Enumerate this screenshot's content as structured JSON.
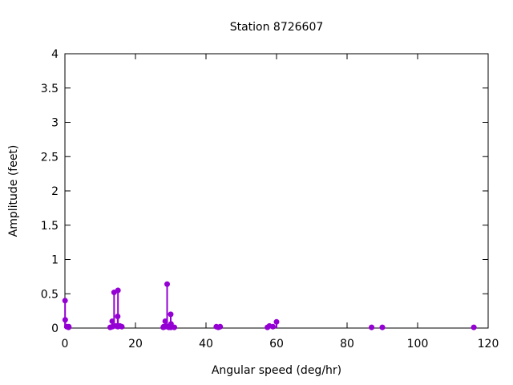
{
  "chart_data": {
    "type": "scatter",
    "style": "stem+point",
    "title": "Station 8726607",
    "xlabel": "Angular speed (deg/hr)",
    "ylabel": "Amplitude (feet)",
    "xlim": [
      0,
      120
    ],
    "ylim": [
      0,
      4
    ],
    "xticks": {
      "values": [
        0,
        20,
        40,
        60,
        80,
        100,
        120
      ],
      "labels": [
        "0",
        "20",
        "40",
        "60",
        "80",
        "100",
        "120"
      ]
    },
    "yticks": {
      "values": [
        0,
        0.5,
        1,
        1.5,
        2,
        2.5,
        3,
        3.5,
        4
      ],
      "labels": [
        "0",
        "0.5",
        "1",
        "1.5",
        "2",
        "2.5",
        "3",
        "3.5",
        "4"
      ]
    },
    "grid": false,
    "legend_position": "none",
    "tick_style": "inward-mirrored",
    "point_color": "#9400d3",
    "axis_color": "#000000",
    "text_color": "#000000",
    "background_color": "#ffffff",
    "series": [
      {
        "name": "harmonic-amplitudes",
        "color": "#9400d3",
        "points": [
          [
            0.04,
            0.4
          ],
          [
            0.08,
            0.12
          ],
          [
            0.54,
            0.02
          ],
          [
            1.02,
            0.01
          ],
          [
            1.1,
            0.02
          ],
          [
            12.85,
            0.01
          ],
          [
            13.4,
            0.1
          ],
          [
            13.47,
            0.02
          ],
          [
            13.94,
            0.52
          ],
          [
            14.5,
            0.03
          ],
          [
            14.96,
            0.17
          ],
          [
            15.0,
            0.02
          ],
          [
            15.04,
            0.55
          ],
          [
            15.59,
            0.03
          ],
          [
            16.14,
            0.02
          ],
          [
            27.9,
            0.01
          ],
          [
            27.97,
            0.02
          ],
          [
            28.44,
            0.1
          ],
          [
            28.51,
            0.02
          ],
          [
            28.98,
            0.64
          ],
          [
            29.46,
            0.01
          ],
          [
            29.53,
            0.02
          ],
          [
            29.96,
            0.01
          ],
          [
            30.0,
            0.2
          ],
          [
            30.04,
            0.01
          ],
          [
            30.08,
            0.06
          ],
          [
            31.02,
            0.01
          ],
          [
            42.93,
            0.02
          ],
          [
            43.48,
            0.01
          ],
          [
            44.03,
            0.02
          ],
          [
            57.42,
            0.01
          ],
          [
            57.97,
            0.03
          ],
          [
            58.98,
            0.02
          ],
          [
            60.0,
            0.09
          ],
          [
            86.95,
            0.01
          ],
          [
            90.0,
            0.01
          ],
          [
            115.94,
            0.01
          ]
        ]
      }
    ]
  }
}
